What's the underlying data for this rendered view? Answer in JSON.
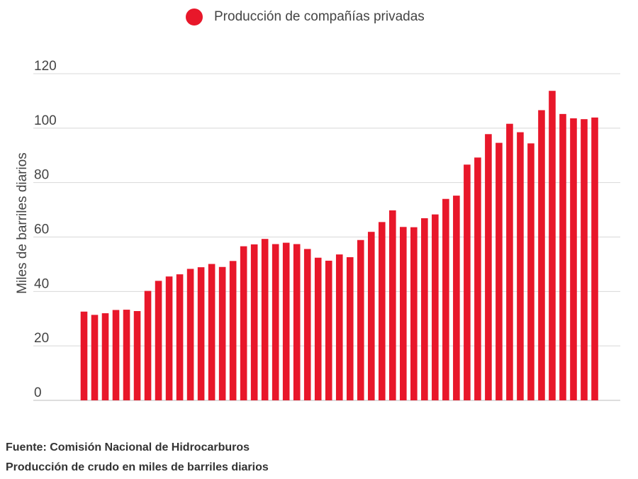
{
  "colors": {
    "bar": "#e8172a",
    "grid": "#d8d8d8",
    "baseline": "#bbbbbb"
  },
  "legend": {
    "label": "Producción de compañías privadas"
  },
  "footer": {
    "source": "Fuente: Comisión Nacional de Hidrocarburos",
    "note": "Producción de crudo en miles de barriles diarios"
  },
  "chart_data": {
    "type": "bar",
    "title": "",
    "xlabel": "",
    "ylabel": "Miles de barriles diarios",
    "ylim": [
      0,
      120
    ],
    "yticks": [
      0,
      20,
      40,
      60,
      80,
      100,
      120
    ],
    "grid": true,
    "legend_position": "top-center",
    "series": [
      {
        "name": "Producción de compañías privadas",
        "values": [
          32.6,
          31.4,
          32.0,
          33.2,
          33.3,
          32.8,
          40.2,
          43.9,
          45.5,
          46.3,
          48.3,
          48.9,
          50.1,
          49.0,
          51.2,
          56.6,
          57.3,
          59.3,
          57.4,
          57.9,
          57.4,
          55.6,
          52.4,
          51.3,
          53.6,
          52.6,
          58.9,
          61.9,
          65.5,
          69.8,
          63.7,
          63.6,
          66.9,
          68.3,
          74.0,
          75.2,
          86.6,
          89.2,
          97.8,
          94.6,
          101.6,
          98.5,
          94.4,
          106.6,
          113.7,
          105.2,
          103.6,
          103.3,
          103.9
        ]
      }
    ]
  }
}
